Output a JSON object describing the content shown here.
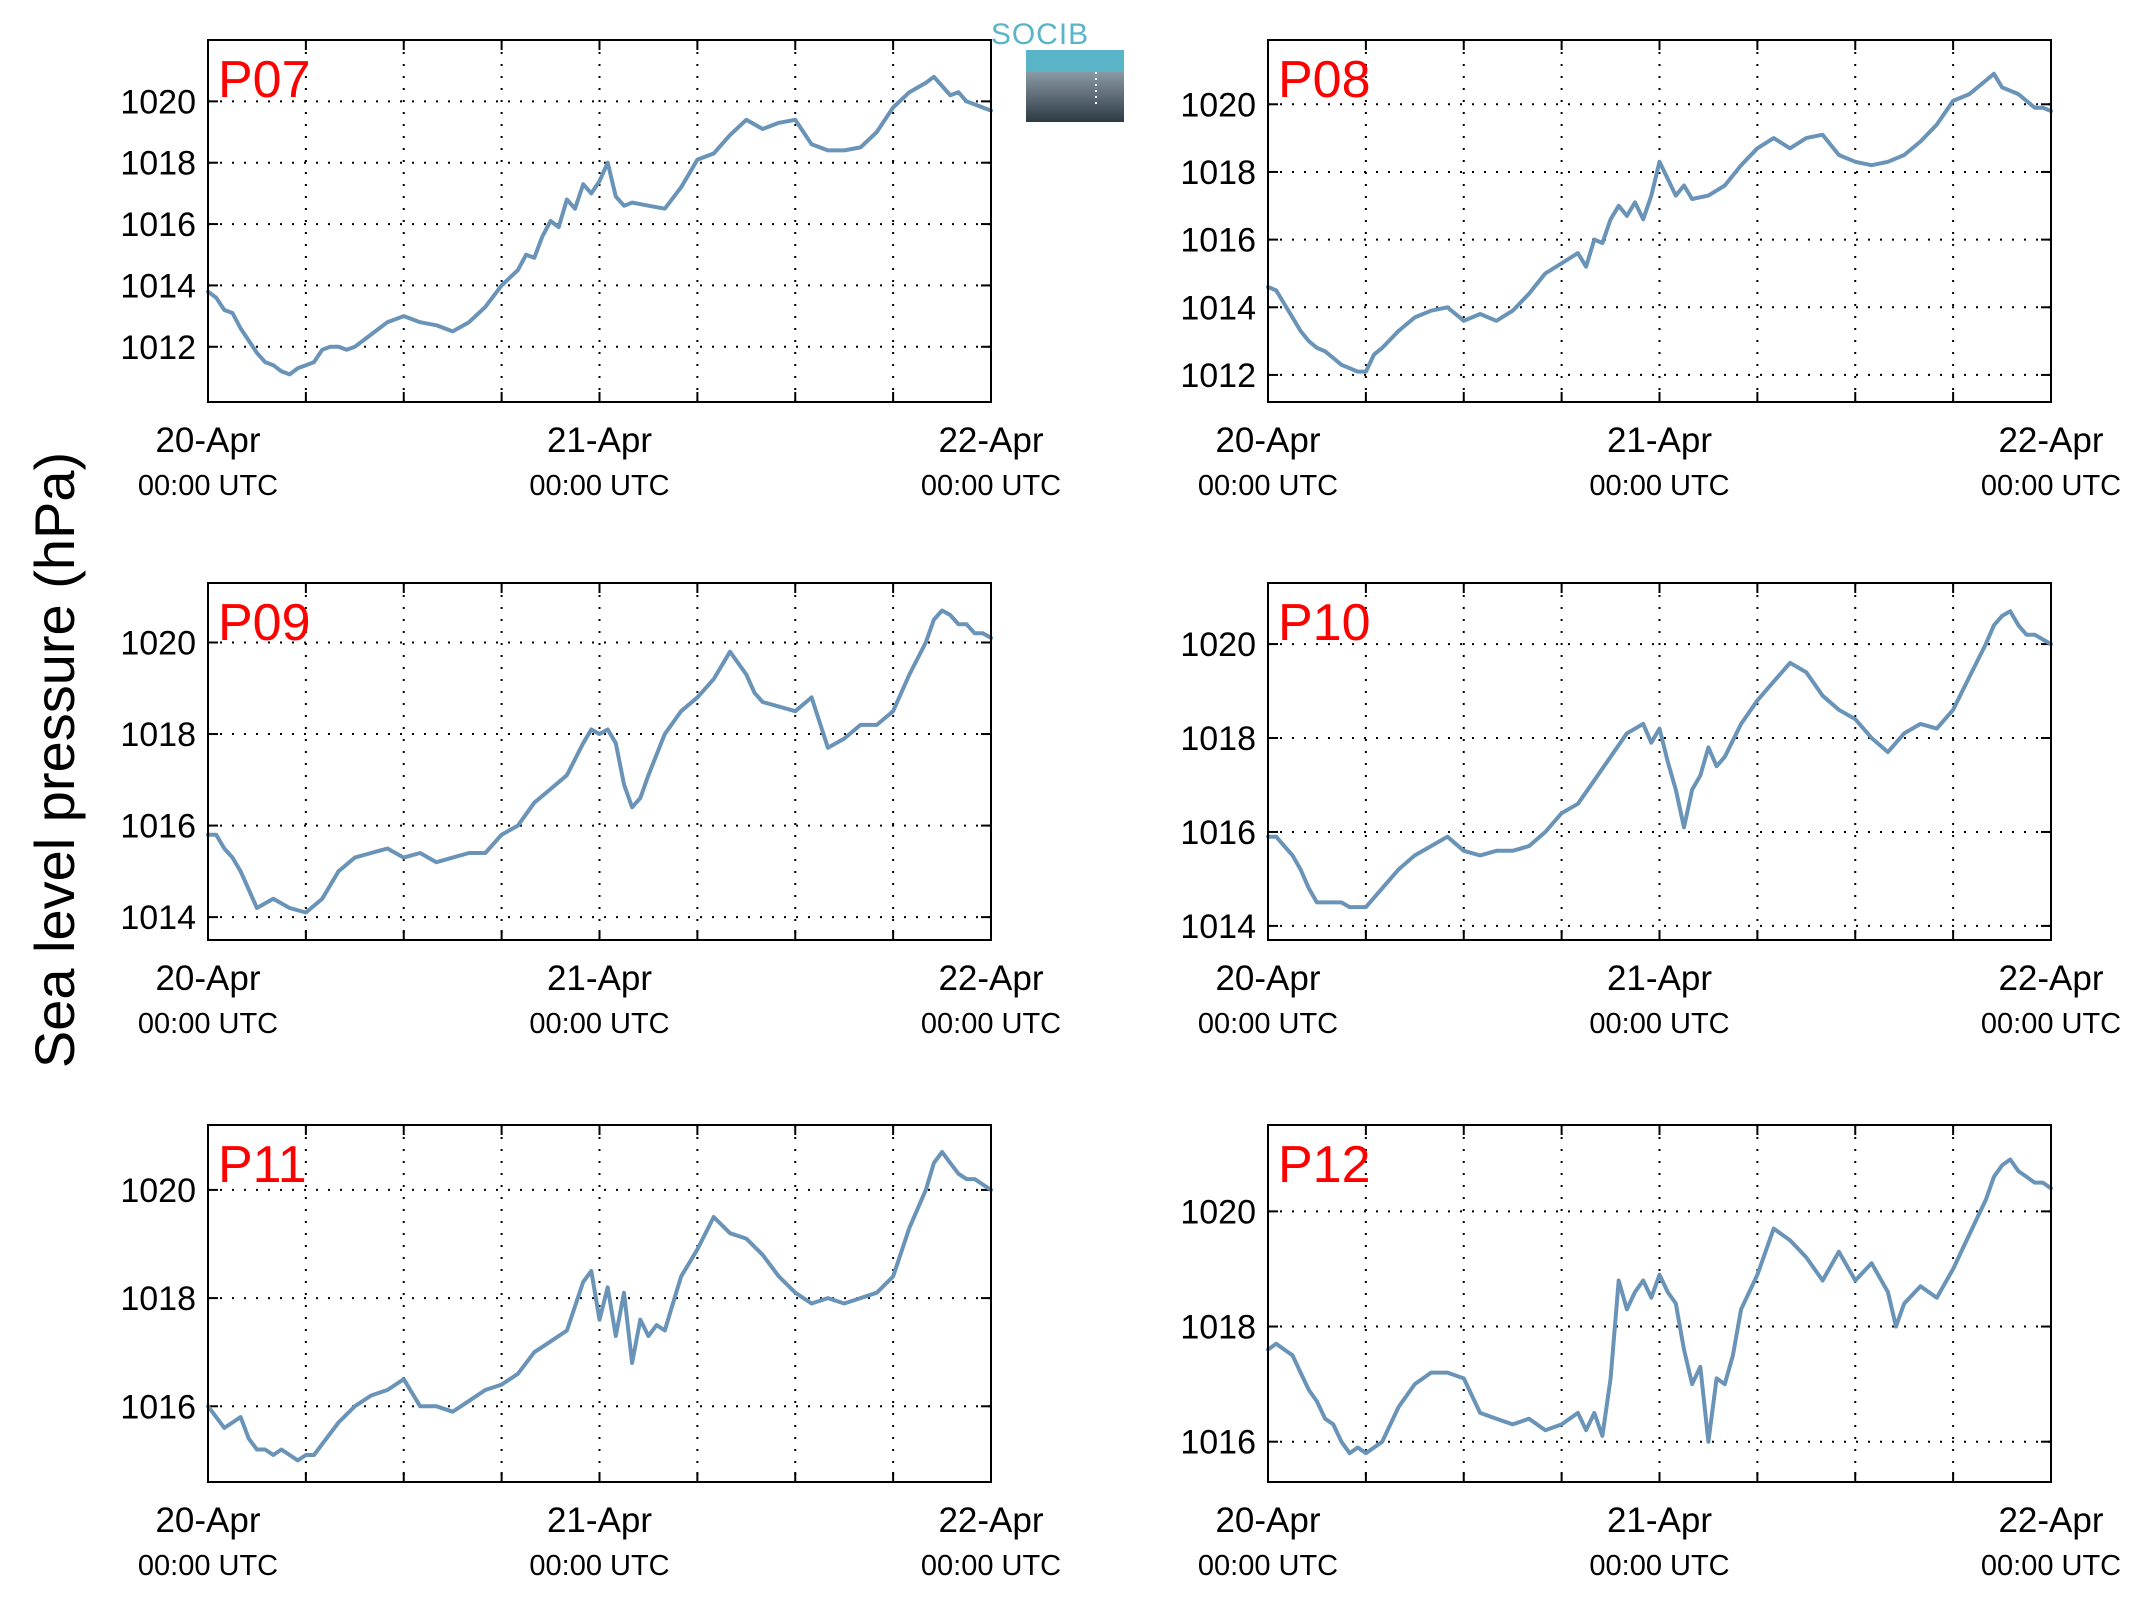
{
  "figure": {
    "ylabel": "Sea level pressure (hPa)",
    "logo_text": "SOCIB",
    "line_color": "#6a93b8",
    "title_color": "#ff0000"
  },
  "chart_data": [
    {
      "type": "line",
      "title": "P07",
      "x_ticks": [
        0,
        48,
        96
      ],
      "x_tick_labels": [
        [
          "20-Apr",
          "00:00 UTC"
        ],
        [
          "21-Apr",
          "00:00 UTC"
        ],
        [
          "22-Apr",
          "00:00 UTC"
        ]
      ],
      "xlim": [
        0,
        96
      ],
      "ylim": [
        1010.2,
        1022
      ],
      "y_ticks": [
        1012,
        1014,
        1016,
        1018,
        1020
      ],
      "grid": true,
      "series": [
        {
          "x": [
            0,
            1,
            2,
            3,
            4,
            5,
            6,
            7,
            8,
            9,
            10,
            11,
            12,
            13,
            14,
            15,
            16,
            17,
            18,
            20,
            22,
            24,
            26,
            28,
            30,
            32,
            34,
            36,
            38,
            39,
            40,
            41,
            42,
            43,
            44,
            45,
            46,
            47,
            48,
            49,
            50,
            51,
            52,
            54,
            56,
            58,
            60,
            62,
            64,
            66,
            68,
            70,
            72,
            74,
            76,
            78,
            80,
            82,
            84,
            86,
            88,
            89,
            90,
            91,
            92,
            93,
            94,
            95,
            96
          ],
          "values": [
            1013.8,
            1013.6,
            1013.2,
            1013.1,
            1012.6,
            1012.2,
            1011.8,
            1011.5,
            1011.4,
            1011.2,
            1011.1,
            1011.3,
            1011.4,
            1011.5,
            1011.9,
            1012.0,
            1012.0,
            1011.9,
            1012.0,
            1012.4,
            1012.8,
            1013.0,
            1012.8,
            1012.7,
            1012.5,
            1012.8,
            1013.3,
            1014.0,
            1014.5,
            1015.0,
            1014.9,
            1015.6,
            1016.1,
            1015.9,
            1016.8,
            1016.5,
            1017.3,
            1017.0,
            1017.4,
            1018.0,
            1016.9,
            1016.6,
            1016.7,
            1016.6,
            1016.5,
            1017.2,
            1018.1,
            1018.3,
            1018.9,
            1019.4,
            1019.1,
            1019.3,
            1019.4,
            1018.6,
            1018.4,
            1018.4,
            1018.5,
            1019.0,
            1019.8,
            1020.3,
            1020.6,
            1020.8,
            1020.5,
            1020.2,
            1020.3,
            1020.0,
            1019.9,
            1019.8,
            1019.7
          ]
        }
      ]
    },
    {
      "type": "line",
      "title": "P08",
      "x_ticks": [
        0,
        48,
        96
      ],
      "x_tick_labels": [
        [
          "20-Apr",
          "00:00 UTC"
        ],
        [
          "21-Apr",
          "00:00 UTC"
        ],
        [
          "22-Apr",
          "00:00 UTC"
        ]
      ],
      "xlim": [
        0,
        96
      ],
      "ylim": [
        1011.2,
        1021.9
      ],
      "y_ticks": [
        1012,
        1014,
        1016,
        1018,
        1020
      ],
      "grid": true,
      "series": [
        {
          "x": [
            0,
            1,
            2,
            3,
            4,
            5,
            6,
            7,
            8,
            9,
            10,
            11,
            12,
            13,
            14,
            16,
            18,
            20,
            22,
            24,
            26,
            28,
            30,
            32,
            34,
            36,
            38,
            39,
            40,
            41,
            42,
            43,
            44,
            45,
            46,
            47,
            48,
            49,
            50,
            51,
            52,
            54,
            56,
            58,
            60,
            62,
            64,
            66,
            68,
            70,
            72,
            74,
            76,
            78,
            80,
            82,
            84,
            86,
            88,
            89,
            90,
            91,
            92,
            93,
            94,
            95,
            96
          ],
          "values": [
            1014.6,
            1014.5,
            1014.1,
            1013.7,
            1013.3,
            1013.0,
            1012.8,
            1012.7,
            1012.5,
            1012.3,
            1012.2,
            1012.1,
            1012.1,
            1012.6,
            1012.8,
            1013.3,
            1013.7,
            1013.9,
            1014.0,
            1013.6,
            1013.8,
            1013.6,
            1013.9,
            1014.4,
            1015.0,
            1015.3,
            1015.6,
            1015.2,
            1016.0,
            1015.9,
            1016.6,
            1017.0,
            1016.7,
            1017.1,
            1016.6,
            1017.3,
            1018.3,
            1017.8,
            1017.3,
            1017.6,
            1017.2,
            1017.3,
            1017.6,
            1018.2,
            1018.7,
            1019.0,
            1018.7,
            1019.0,
            1019.1,
            1018.5,
            1018.3,
            1018.2,
            1018.3,
            1018.5,
            1018.9,
            1019.4,
            1020.1,
            1020.3,
            1020.7,
            1020.9,
            1020.5,
            1020.4,
            1020.3,
            1020.1,
            1019.9,
            1019.9,
            1019.8
          ]
        }
      ]
    },
    {
      "type": "line",
      "title": "P09",
      "x_ticks": [
        0,
        48,
        96
      ],
      "x_tick_labels": [
        [
          "20-Apr",
          "00:00 UTC"
        ],
        [
          "21-Apr",
          "00:00 UTC"
        ],
        [
          "22-Apr",
          "00:00 UTC"
        ]
      ],
      "xlim": [
        0,
        96
      ],
      "ylim": [
        1013.5,
        1021.3
      ],
      "y_ticks": [
        1014,
        1016,
        1018,
        1020
      ],
      "grid": true,
      "series": [
        {
          "x": [
            0,
            1,
            2,
            3,
            4,
            5,
            6,
            7,
            8,
            9,
            10,
            12,
            14,
            16,
            18,
            20,
            22,
            24,
            26,
            28,
            30,
            32,
            34,
            36,
            38,
            40,
            42,
            44,
            46,
            47,
            48,
            49,
            50,
            51,
            52,
            53,
            54,
            56,
            58,
            60,
            62,
            64,
            66,
            67,
            68,
            70,
            72,
            74,
            76,
            78,
            80,
            82,
            84,
            86,
            88,
            89,
            90,
            91,
            92,
            93,
            94,
            95,
            96
          ],
          "values": [
            1015.8,
            1015.8,
            1015.5,
            1015.3,
            1015.0,
            1014.6,
            1014.2,
            1014.3,
            1014.4,
            1014.3,
            1014.2,
            1014.1,
            1014.4,
            1015.0,
            1015.3,
            1015.4,
            1015.5,
            1015.3,
            1015.4,
            1015.2,
            1015.3,
            1015.4,
            1015.4,
            1015.8,
            1016.0,
            1016.5,
            1016.8,
            1017.1,
            1017.8,
            1018.1,
            1018.0,
            1018.1,
            1017.8,
            1016.9,
            1016.4,
            1016.6,
            1017.1,
            1018.0,
            1018.5,
            1018.8,
            1019.2,
            1019.8,
            1019.3,
            1018.9,
            1018.7,
            1018.6,
            1018.5,
            1018.8,
            1017.7,
            1017.9,
            1018.2,
            1018.2,
            1018.5,
            1019.3,
            1020.0,
            1020.5,
            1020.7,
            1020.6,
            1020.4,
            1020.4,
            1020.2,
            1020.2,
            1020.1
          ]
        }
      ]
    },
    {
      "type": "line",
      "title": "P10",
      "x_ticks": [
        0,
        48,
        96
      ],
      "x_tick_labels": [
        [
          "20-Apr",
          "00:00 UTC"
        ],
        [
          "21-Apr",
          "00:00 UTC"
        ],
        [
          "22-Apr",
          "00:00 UTC"
        ]
      ],
      "xlim": [
        0,
        96
      ],
      "ylim": [
        1013.7,
        1021.3
      ],
      "y_ticks": [
        1014,
        1016,
        1018,
        1020
      ],
      "grid": true,
      "series": [
        {
          "x": [
            0,
            1,
            2,
            3,
            4,
            5,
            6,
            7,
            8,
            9,
            10,
            12,
            14,
            16,
            18,
            20,
            22,
            24,
            26,
            28,
            30,
            32,
            34,
            36,
            38,
            40,
            42,
            44,
            46,
            47,
            48,
            49,
            50,
            51,
            52,
            53,
            54,
            55,
            56,
            58,
            60,
            62,
            64,
            66,
            68,
            70,
            72,
            74,
            76,
            78,
            80,
            82,
            84,
            86,
            88,
            89,
            90,
            91,
            92,
            93,
            94,
            95,
            96
          ],
          "values": [
            1015.9,
            1015.9,
            1015.7,
            1015.5,
            1015.2,
            1014.8,
            1014.5,
            1014.5,
            1014.5,
            1014.5,
            1014.4,
            1014.4,
            1014.8,
            1015.2,
            1015.5,
            1015.7,
            1015.9,
            1015.6,
            1015.5,
            1015.6,
            1015.6,
            1015.7,
            1016.0,
            1016.4,
            1016.6,
            1017.1,
            1017.6,
            1018.1,
            1018.3,
            1017.9,
            1018.2,
            1017.5,
            1016.9,
            1016.1,
            1016.9,
            1017.2,
            1017.8,
            1017.4,
            1017.6,
            1018.3,
            1018.8,
            1019.2,
            1019.6,
            1019.4,
            1018.9,
            1018.6,
            1018.4,
            1018.0,
            1017.7,
            1018.1,
            1018.3,
            1018.2,
            1018.6,
            1019.3,
            1020.0,
            1020.4,
            1020.6,
            1020.7,
            1020.4,
            1020.2,
            1020.2,
            1020.1,
            1020.0
          ]
        }
      ]
    },
    {
      "type": "line",
      "title": "P11",
      "x_ticks": [
        0,
        48,
        96
      ],
      "x_tick_labels": [
        [
          "20-Apr",
          "00:00 UTC"
        ],
        [
          "21-Apr",
          "00:00 UTC"
        ],
        [
          "22-Apr",
          "00:00 UTC"
        ]
      ],
      "xlim": [
        0,
        96
      ],
      "ylim": [
        1014.6,
        1021.2
      ],
      "y_ticks": [
        1016,
        1018,
        1020
      ],
      "grid": true,
      "series": [
        {
          "x": [
            0,
            1,
            2,
            3,
            4,
            5,
            6,
            7,
            8,
            9,
            10,
            11,
            12,
            13,
            14,
            16,
            18,
            20,
            22,
            24,
            26,
            28,
            30,
            32,
            34,
            36,
            38,
            40,
            42,
            44,
            46,
            47,
            48,
            49,
            50,
            51,
            52,
            53,
            54,
            55,
            56,
            57,
            58,
            60,
            62,
            64,
            66,
            68,
            70,
            72,
            74,
            76,
            78,
            80,
            82,
            84,
            86,
            88,
            89,
            90,
            91,
            92,
            93,
            94,
            95,
            96
          ],
          "values": [
            1016.0,
            1015.8,
            1015.6,
            1015.7,
            1015.8,
            1015.4,
            1015.2,
            1015.2,
            1015.1,
            1015.2,
            1015.1,
            1015.0,
            1015.1,
            1015.1,
            1015.3,
            1015.7,
            1016.0,
            1016.2,
            1016.3,
            1016.5,
            1016.0,
            1016.0,
            1015.9,
            1016.1,
            1016.3,
            1016.4,
            1016.6,
            1017.0,
            1017.2,
            1017.4,
            1018.3,
            1018.5,
            1017.6,
            1018.2,
            1017.3,
            1018.1,
            1016.8,
            1017.6,
            1017.3,
            1017.5,
            1017.4,
            1017.9,
            1018.4,
            1018.9,
            1019.5,
            1019.2,
            1019.1,
            1018.8,
            1018.4,
            1018.1,
            1017.9,
            1018.0,
            1017.9,
            1018.0,
            1018.1,
            1018.4,
            1019.3,
            1020.0,
            1020.5,
            1020.7,
            1020.5,
            1020.3,
            1020.2,
            1020.2,
            1020.1,
            1020.0
          ]
        }
      ]
    },
    {
      "type": "line",
      "title": "P12",
      "x_ticks": [
        0,
        48,
        96
      ],
      "x_tick_labels": [
        [
          "20-Apr",
          "00:00 UTC"
        ],
        [
          "21-Apr",
          "00:00 UTC"
        ],
        [
          "22-Apr",
          "00:00 UTC"
        ]
      ],
      "xlim": [
        0,
        96
      ],
      "ylim": [
        1015.3,
        1021.5
      ],
      "y_ticks": [
        1016,
        1018,
        1020
      ],
      "grid": true,
      "series": [
        {
          "x": [
            0,
            1,
            2,
            3,
            4,
            5,
            6,
            7,
            8,
            9,
            10,
            11,
            12,
            13,
            14,
            16,
            18,
            20,
            22,
            24,
            26,
            28,
            30,
            32,
            34,
            36,
            38,
            39,
            40,
            41,
            42,
            43,
            44,
            45,
            46,
            47,
            48,
            49,
            50,
            51,
            52,
            53,
            54,
            55,
            56,
            57,
            58,
            60,
            62,
            64,
            66,
            68,
            70,
            72,
            74,
            76,
            77,
            78,
            80,
            82,
            84,
            86,
            88,
            89,
            90,
            91,
            92,
            93,
            94,
            95,
            96
          ],
          "values": [
            1017.6,
            1017.7,
            1017.6,
            1017.5,
            1017.2,
            1016.9,
            1016.7,
            1016.4,
            1016.3,
            1016.0,
            1015.8,
            1015.9,
            1015.8,
            1015.9,
            1016.0,
            1016.6,
            1017.0,
            1017.2,
            1017.2,
            1017.1,
            1016.5,
            1016.4,
            1016.3,
            1016.4,
            1016.2,
            1016.3,
            1016.5,
            1016.2,
            1016.5,
            1016.1,
            1017.1,
            1018.8,
            1018.3,
            1018.6,
            1018.8,
            1018.5,
            1018.9,
            1018.6,
            1018.4,
            1017.6,
            1017.0,
            1017.3,
            1016.0,
            1017.1,
            1017.0,
            1017.5,
            1018.3,
            1018.9,
            1019.7,
            1019.5,
            1019.2,
            1018.8,
            1019.3,
            1018.8,
            1019.1,
            1018.6,
            1018.0,
            1018.4,
            1018.7,
            1018.5,
            1019.0,
            1019.6,
            1020.2,
            1020.6,
            1020.8,
            1020.9,
            1020.7,
            1020.6,
            1020.5,
            1020.5,
            1020.4
          ]
        }
      ]
    }
  ]
}
